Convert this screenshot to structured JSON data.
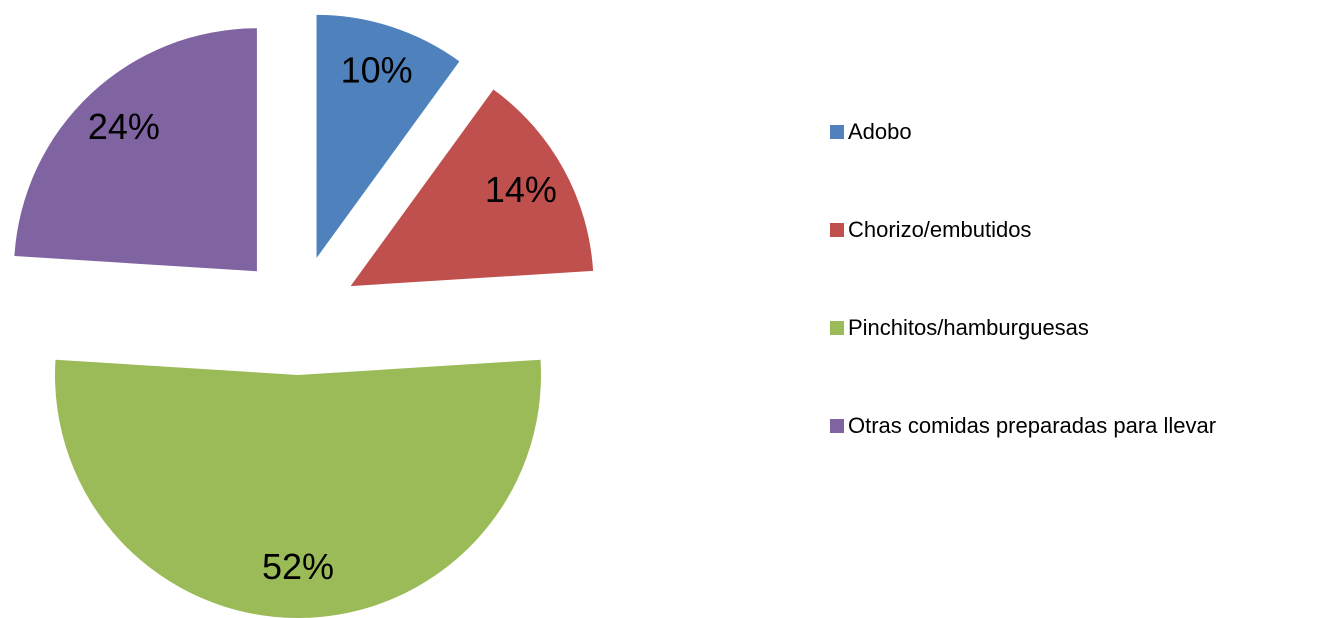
{
  "chart_data": {
    "type": "pie",
    "categories": [
      "Adobo",
      "Chorizo/embutidos",
      "Pinchitos/hamburguesas",
      "Otras comidas preparadas para llevar"
    ],
    "values": [
      10,
      14,
      52,
      24
    ],
    "value_labels": [
      "10%",
      "14%",
      "52%",
      "24%"
    ],
    "colors": [
      "#4f81bd",
      "#c0504d",
      "#9bbb59",
      "#8064a2"
    ],
    "exploded": true,
    "legend": "right"
  }
}
